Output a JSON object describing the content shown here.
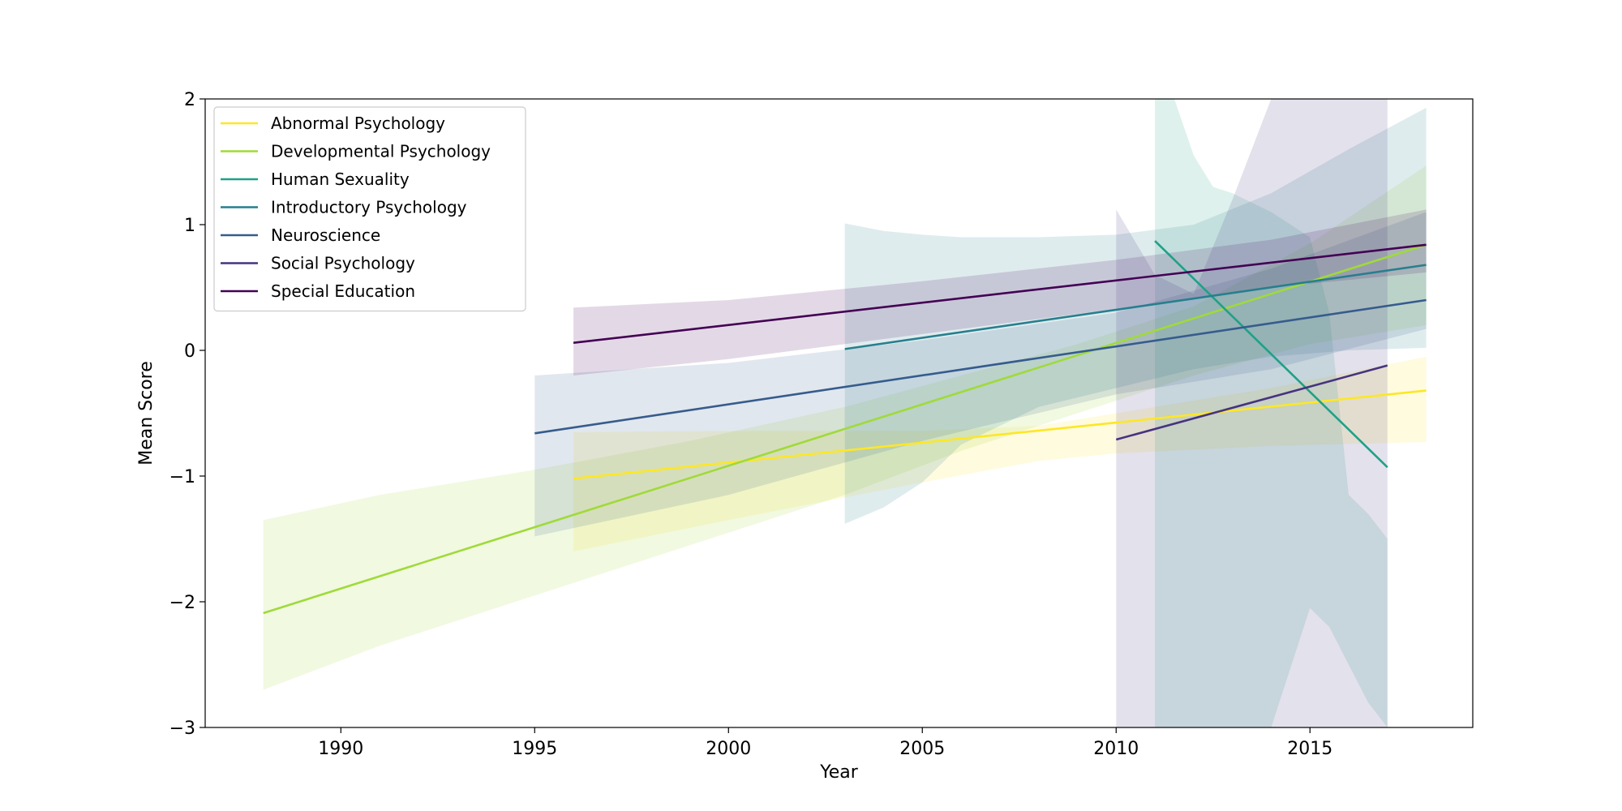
{
  "chart_data": {
    "type": "line",
    "title": "",
    "xlabel": "Year",
    "ylabel": "Mean Score",
    "xlim": [
      1986.5,
      2019.2
    ],
    "ylim": [
      -3,
      2
    ],
    "xticks": [
      1990,
      1995,
      2000,
      2005,
      2010,
      2015
    ],
    "yticks": [
      -3,
      -2,
      -1,
      0,
      1,
      2
    ],
    "ytick_labels": [
      "−3",
      "−2",
      "−1",
      "0",
      "1",
      "2"
    ],
    "grid": false,
    "legend_position": "top-left",
    "series": [
      {
        "name": "Abnormal Psychology",
        "color": "#fde725",
        "x": [
          1996,
          2018
        ],
        "y": [
          -1.02,
          -0.32
        ],
        "band": {
          "x": [
            1996,
            2000,
            2005,
            2008,
            2010,
            2014,
            2018
          ],
          "lower": [
            -1.6,
            -1.35,
            -1.05,
            -0.88,
            -0.82,
            -0.76,
            -0.73
          ],
          "upper": [
            -0.65,
            -0.64,
            -0.64,
            -0.6,
            -0.5,
            -0.3,
            -0.05
          ]
        }
      },
      {
        "name": "Developmental Psychology",
        "color": "#a0da39",
        "x": [
          1988,
          2018
        ],
        "y": [
          -2.09,
          0.84
        ],
        "band": {
          "x": [
            1988,
            1991,
            1995,
            1999,
            2003,
            2006,
            2009,
            2012,
            2015,
            2018
          ],
          "lower": [
            -2.7,
            -2.35,
            -1.95,
            -1.55,
            -1.15,
            -0.8,
            -0.5,
            -0.2,
            0.05,
            0.2
          ],
          "upper": [
            -1.35,
            -1.15,
            -0.95,
            -0.72,
            -0.45,
            -0.2,
            0.05,
            0.35,
            0.85,
            1.47
          ]
        }
      },
      {
        "name": "Human Sexuality",
        "color": "#1fa187",
        "x": [
          2011,
          2017
        ],
        "y": [
          0.87,
          -0.93
        ],
        "band": {
          "x": [
            2011,
            2011.5,
            2012,
            2012.5,
            2013,
            2014,
            2015,
            2015.5,
            2016,
            2016.5,
            2017
          ],
          "lower": [
            -3.0,
            -3.0,
            -3.0,
            -3.0,
            -3.0,
            -3.0,
            -2.05,
            -2.2,
            -2.5,
            -2.8,
            -3.0
          ],
          "upper": [
            2.0,
            2.0,
            1.55,
            1.3,
            1.25,
            1.1,
            0.9,
            0.3,
            -1.15,
            -1.3,
            -1.5
          ]
        }
      },
      {
        "name": "Introductory Psychology",
        "color": "#277f8e",
        "x": [
          2003,
          2018
        ],
        "y": [
          0.01,
          0.68
        ],
        "band": {
          "x": [
            2003,
            2004,
            2005,
            2006,
            2008,
            2010,
            2012,
            2014,
            2016,
            2018
          ],
          "lower": [
            -1.38,
            -1.25,
            -1.05,
            -0.75,
            -0.45,
            -0.3,
            -0.15,
            -0.05,
            0.0,
            0.02
          ],
          "upper": [
            1.01,
            0.95,
            0.92,
            0.9,
            0.9,
            0.92,
            1.0,
            1.25,
            1.6,
            1.93
          ]
        }
      },
      {
        "name": "Neuroscience",
        "color": "#365c8d",
        "x": [
          1995,
          2018
        ],
        "y": [
          -0.66,
          0.4
        ],
        "band": {
          "x": [
            1995,
            2000,
            2005,
            2010,
            2014,
            2018
          ],
          "lower": [
            -1.48,
            -1.15,
            -0.72,
            -0.35,
            -0.15,
            0.17
          ],
          "upper": [
            -0.2,
            -0.1,
            0.08,
            0.3,
            0.65,
            1.1
          ]
        }
      },
      {
        "name": "Social Psychology",
        "color": "#46337e",
        "x": [
          2010,
          2017
        ],
        "y": [
          -0.71,
          -0.12
        ],
        "band": {
          "x": [
            2010,
            2011,
            2012,
            2013,
            2014,
            2015,
            2016,
            2017
          ],
          "lower": [
            -3.0,
            -3.0,
            -3.0,
            -3.0,
            -3.0,
            -3.0,
            -3.0,
            -3.0
          ],
          "upper": [
            1.12,
            0.6,
            0.45,
            1.2,
            2.0,
            2.0,
            2.0,
            2.0
          ]
        }
      },
      {
        "name": "Special Education",
        "color": "#440154",
        "x": [
          1996,
          2018
        ],
        "y": [
          0.06,
          0.84
        ],
        "band": {
          "x": [
            1996,
            2000,
            2005,
            2010,
            2014,
            2018
          ],
          "lower": [
            -0.2,
            -0.07,
            0.13,
            0.33,
            0.5,
            0.62
          ],
          "upper": [
            0.34,
            0.4,
            0.55,
            0.72,
            0.88,
            1.12
          ]
        }
      }
    ]
  }
}
